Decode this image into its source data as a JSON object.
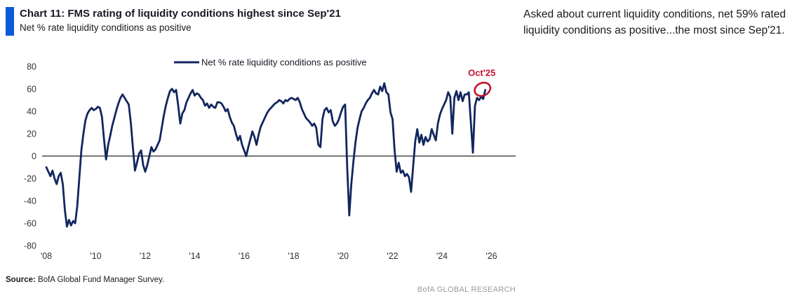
{
  "title": "Chart 11: FMS rating of liquidity conditions highest since Sep'21",
  "subtitle": "Net % rate liquidity conditions as positive",
  "commentary": "Asked about current liquidity conditions, net 59% rated liquidity conditions as positive...the most since Sep'21.",
  "source_label": "Source:",
  "source_text": " BofA Global Fund Manager Survey.",
  "brand": "BofA GLOBAL RESEARCH",
  "annotation": {
    "label": "Oct'25",
    "value": 59
  },
  "colors": {
    "accent_blue": "#0b5bd7",
    "line_navy": "#12265e",
    "annotation_red": "#c41230",
    "axis_gray": "#4a4a4a",
    "tick_gray": "#333333",
    "title_dark": "#181826",
    "text_dark": "#1a1a1a",
    "brand_gray": "#9b9b9b"
  },
  "chart_data": {
    "type": "line",
    "title": "Chart 11: FMS rating of liquidity conditions highest since Sep'21",
    "ylabel": "Net % rate liquidity conditions as positive",
    "legend_label": "Net % rate liquidity conditions as positive",
    "legend_position": "top-center",
    "grid": false,
    "ylim": [
      -80,
      80
    ],
    "y_ticks": [
      80,
      60,
      40,
      20,
      0,
      -20,
      -40,
      -60,
      -80
    ],
    "x_ticks": [
      "'08",
      "'10",
      "'12",
      "'14",
      "'16",
      "'18",
      "'20",
      "'22",
      "'24",
      "'26"
    ],
    "x_axis_year_range": [
      2008,
      2027
    ],
    "series": [
      {
        "name": "Net % rate liquidity conditions as positive",
        "frequency": "monthly",
        "start": "2008-01",
        "end": "2025-10",
        "values": [
          -10,
          -14,
          -18,
          -13,
          -20,
          -25,
          -18,
          -15,
          -25,
          -48,
          -63,
          -57,
          -62,
          -58,
          -60,
          -45,
          -20,
          5,
          20,
          32,
          38,
          41,
          43,
          41,
          42,
          44,
          43,
          35,
          15,
          -3,
          10,
          18,
          27,
          34,
          41,
          47,
          52,
          55,
          52,
          49,
          46,
          30,
          8,
          -13,
          -6,
          2,
          5,
          -8,
          -14,
          -8,
          0,
          8,
          4,
          6,
          10,
          14,
          25,
          36,
          45,
          52,
          58,
          60,
          57,
          59,
          45,
          29,
          38,
          41,
          48,
          52,
          56,
          59,
          54,
          56,
          55,
          52,
          50,
          45,
          47,
          43,
          46,
          44,
          43,
          48,
          48,
          47,
          44,
          40,
          42,
          35,
          30,
          27,
          20,
          14,
          18,
          10,
          5,
          0,
          8,
          15,
          22,
          17,
          10,
          19,
          26,
          30,
          34,
          38,
          41,
          43,
          45,
          47,
          48,
          50,
          49,
          47,
          50,
          49,
          51,
          52,
          51,
          50,
          52,
          48,
          42,
          38,
          34,
          32,
          30,
          27,
          29,
          25,
          10,
          8,
          33,
          41,
          43,
          39,
          41,
          31,
          27,
          29,
          33,
          39,
          44,
          46,
          -10,
          -53,
          -25,
          -5,
          12,
          25,
          33,
          40,
          43,
          47,
          50,
          52,
          56,
          59,
          56,
          55,
          62,
          58,
          65,
          57,
          55,
          39,
          33,
          5,
          -14,
          -6,
          -15,
          -13,
          -18,
          -16,
          -19,
          -32,
          -9,
          13,
          24,
          12,
          19,
          10,
          17,
          13,
          15,
          24,
          19,
          14,
          29,
          37,
          42,
          46,
          50,
          57,
          53,
          20,
          52,
          58,
          50,
          57,
          49,
          55,
          55,
          57,
          30,
          3,
          45,
          52,
          50,
          53,
          51,
          59
        ],
        "last_point_label": "Oct'25",
        "last_point_value": 59
      }
    ]
  }
}
